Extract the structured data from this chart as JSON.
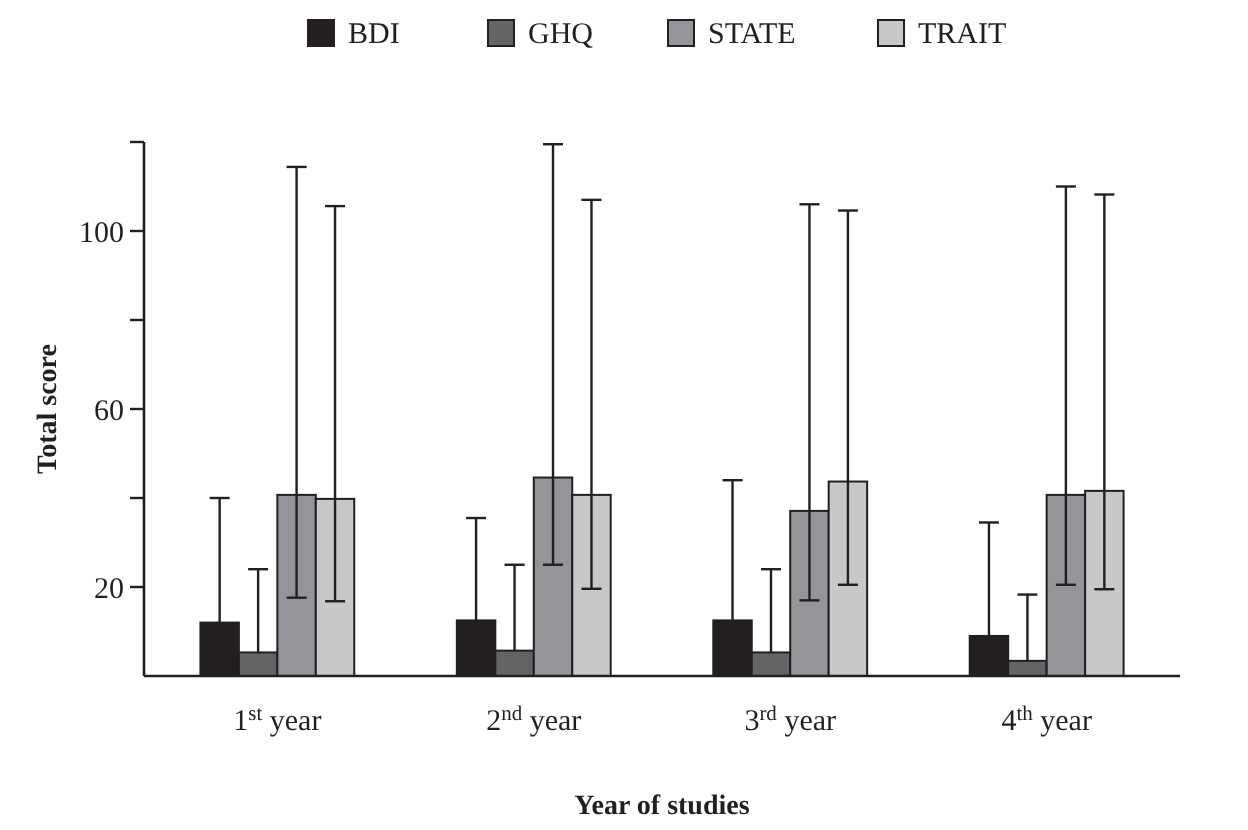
{
  "chart_data": {
    "type": "bar",
    "xlabel": "Year of studies",
    "ylabel": "Total score",
    "categories": [
      "1$^{st}$ year",
      "2$^{nd}$ year",
      "3$^{rd}$ year",
      "4$^{th}$ year"
    ],
    "ylim": [
      0,
      120
    ],
    "yticks": [
      {
        "value": 20,
        "label": "20"
      },
      {
        "value": 40,
        "label": null
      },
      {
        "value": 60,
        "label": "60"
      },
      {
        "value": 80,
        "label": null
      },
      {
        "value": 100,
        "label": "100"
      },
      {
        "value": 120,
        "label": null
      }
    ],
    "legend": "top",
    "grid": false,
    "series": [
      {
        "name": "BDI",
        "color": "#231f20",
        "values": [
          12,
          12.5,
          12.5,
          9
        ],
        "errors": [
          [
            12,
            40
          ],
          [
            12.5,
            35.5
          ],
          [
            12.5,
            44
          ],
          [
            9,
            34.5
          ]
        ]
      },
      {
        "name": "GHQ",
        "color": "#636466",
        "values": [
          5.3,
          5.7,
          5.3,
          3.4
        ],
        "errors": [
          [
            5.3,
            24
          ],
          [
            5.7,
            25
          ],
          [
            5.3,
            24
          ],
          [
            3.4,
            18.3
          ]
        ]
      },
      {
        "name": "STATE",
        "color": "#939598",
        "values": [
          40.7,
          44.6,
          37.1,
          40.7
        ],
        "errors": [
          [
            17.6,
            114.4
          ],
          [
            25,
            119.5
          ],
          [
            17,
            106
          ],
          [
            20.5,
            110
          ]
        ]
      },
      {
        "name": "TRAIT",
        "color": "#c7c8ca",
        "values": [
          39.8,
          40.7,
          43.7,
          41.6
        ],
        "errors": [
          [
            16.8,
            105.6
          ],
          [
            19.6,
            107
          ],
          [
            20.5,
            104.6
          ],
          [
            19.5,
            108.2
          ]
        ]
      }
    ]
  }
}
